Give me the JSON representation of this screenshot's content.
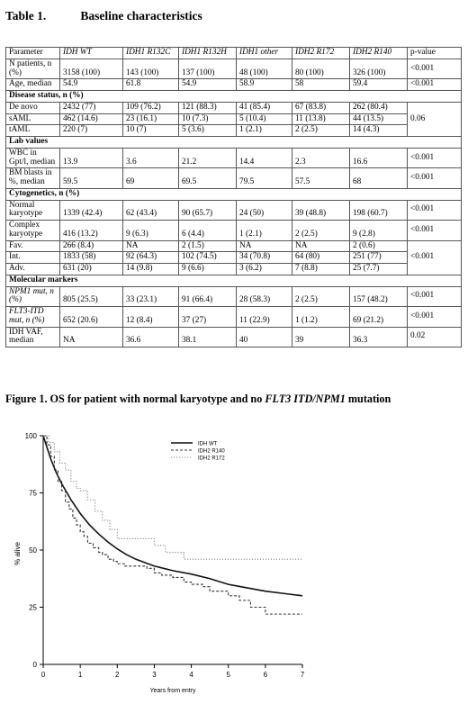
{
  "table": {
    "number": "Table 1.",
    "title": "Baseline characteristics",
    "headers": [
      "Parameter",
      "IDH WT",
      "IDH1 R132C",
      "IDH1 R132H",
      "IDH1 other",
      "IDH2 R172",
      "IDH2 R140",
      "p-value"
    ],
    "rows": [
      {
        "type": "data",
        "label": "N patients, n (%)",
        "values": [
          "3158 (100)",
          "143 (100)",
          "137 (100)",
          "48 (100)",
          "80 (100)",
          "326 (100)"
        ],
        "p": "<0.001"
      },
      {
        "type": "data",
        "label": "Age, median",
        "values": [
          "54.9",
          "61.8",
          "54.9",
          "58.9",
          "58",
          "59.4"
        ],
        "p": "<0.001"
      },
      {
        "type": "section",
        "label": "Disease status, n (%)"
      },
      {
        "type": "data",
        "label": "De novo",
        "values": [
          "2432 (77)",
          "109 (76.2)",
          "121 (88.3)",
          "41 (85.4)",
          "67 (83.8)",
          "262 (80.4)"
        ],
        "p": "0.06",
        "p_rowspan": 3
      },
      {
        "type": "data",
        "label": "sAML",
        "values": [
          "462 (14.6)",
          "23 (16.1)",
          "10 (7.3)",
          "5 (10.4)",
          "11 (13.8)",
          "44 (13.5)"
        ]
      },
      {
        "type": "data",
        "label": "tAML",
        "values": [
          "220 (7)",
          "10 (7)",
          "5 (3.6)",
          "1 (2.1)",
          "2 (2.5)",
          "14 (4.3)"
        ]
      },
      {
        "type": "section",
        "label": "Lab values"
      },
      {
        "type": "data",
        "label": "WBC in Gpt/l, median",
        "values": [
          "13.9",
          "3.6",
          "21.2",
          "14.4",
          "2.3",
          "16.6"
        ],
        "p": "<0.001"
      },
      {
        "type": "data",
        "label": "BM blasts in %, median",
        "values": [
          "59.5",
          "69",
          "69.5",
          "79.5",
          "57.5",
          "68"
        ],
        "p": "<0.001"
      },
      {
        "type": "section",
        "label": "Cytogenetics, n (%)"
      },
      {
        "type": "data",
        "label": "Normal karyotype",
        "values": [
          "1339 (42.4)",
          "62 (43.4)",
          "90 (65.7)",
          "24 (50)",
          "39 (48.8)",
          "198 (60.7)"
        ],
        "p": "<0.001"
      },
      {
        "type": "data",
        "label": "Complex karyotype",
        "values": [
          "416 (13.2)",
          "9 (6.3)",
          "6 (4.4)",
          "1 (2.1)",
          "2 (2.5)",
          "9 (2.8)"
        ],
        "p": "<0.001"
      },
      {
        "type": "data",
        "label": "Fav.",
        "values": [
          "266 (8.4)",
          "NA",
          "2 (1.5)",
          "NA",
          "NA",
          "2 (0.6)"
        ],
        "p": "<0.001",
        "p_rowspan": 3
      },
      {
        "type": "data",
        "label": "Int.",
        "values": [
          "1833 (58)",
          "92 (64.3)",
          "102 (74.5)",
          "34 (70.8)",
          "64 (80)",
          "251 (77)"
        ]
      },
      {
        "type": "data",
        "label": "Adv.",
        "values": [
          "631 (20)",
          "14 (9.8)",
          "9 (6.6)",
          "3 (6.2)",
          "7 (8.8)",
          "25 (7.7)"
        ]
      },
      {
        "type": "section",
        "label": "Molecular markers"
      },
      {
        "type": "data",
        "label": "NPM1 mut, n (%)",
        "values": [
          "805 (25.5)",
          "33 (23.1)",
          "91 (66.4)",
          "28 (58.3)",
          "2 (2.5)",
          "157 (48.2)"
        ],
        "p": "<0.001"
      },
      {
        "type": "data",
        "label": "FLT3-ITD mut, n (%)",
        "values": [
          "652 (20.6)",
          "12 (8.4)",
          "37 (27)",
          "11 (22.9)",
          "1 (1.2)",
          "69 (21.2)"
        ],
        "p": "<0.001"
      },
      {
        "type": "data",
        "label": "IDH VAF, median",
        "values": [
          "NA",
          "36.6",
          "38.1",
          "40",
          "39",
          "36.3"
        ],
        "p": "0.02"
      }
    ]
  },
  "figure": {
    "number": "Figure 1.",
    "title_plain": "OS for patient with normal karyotype and no ",
    "title_italic": "FLT3 ITD/NPM1",
    "title_end": " mutation"
  },
  "chart_data": {
    "type": "line",
    "xlabel": "Years from entry",
    "ylabel": "% alive",
    "xlim": [
      0,
      7
    ],
    "ylim": [
      0,
      100
    ],
    "xticks": [
      0,
      1,
      2,
      3,
      4,
      5,
      6,
      7
    ],
    "yticks": [
      0,
      25,
      50,
      75,
      100
    ],
    "legend_position": "top-right",
    "series": [
      {
        "name": "IDH WT",
        "style": "solid",
        "color": "#111111",
        "points": [
          [
            0,
            100
          ],
          [
            0.1,
            95
          ],
          [
            0.2,
            90
          ],
          [
            0.35,
            84
          ],
          [
            0.5,
            79
          ],
          [
            0.75,
            72
          ],
          [
            1,
            66
          ],
          [
            1.25,
            61
          ],
          [
            1.5,
            57
          ],
          [
            1.75,
            53.5
          ],
          [
            2,
            50.5
          ],
          [
            2.25,
            48
          ],
          [
            2.5,
            46
          ],
          [
            2.75,
            44.5
          ],
          [
            3,
            43
          ],
          [
            3.25,
            42
          ],
          [
            3.5,
            41
          ],
          [
            4,
            39.5
          ],
          [
            4.5,
            37.5
          ],
          [
            5,
            35
          ],
          [
            5.5,
            33.5
          ],
          [
            6,
            32
          ],
          [
            6.5,
            31
          ],
          [
            7,
            30
          ]
        ]
      },
      {
        "name": "IDH2 R140",
        "style": "dashed",
        "color": "#333333",
        "points": [
          [
            0,
            100
          ],
          [
            0.1,
            96
          ],
          [
            0.2,
            91
          ],
          [
            0.3,
            85
          ],
          [
            0.4,
            80
          ],
          [
            0.5,
            76
          ],
          [
            0.6,
            71
          ],
          [
            0.7,
            68
          ],
          [
            0.8,
            64
          ],
          [
            0.9,
            61
          ],
          [
            1,
            58
          ],
          [
            1.1,
            56
          ],
          [
            1.2,
            53
          ],
          [
            1.35,
            51
          ],
          [
            1.5,
            49
          ],
          [
            1.6,
            48
          ],
          [
            1.75,
            46
          ],
          [
            1.9,
            45
          ],
          [
            2,
            44
          ],
          [
            2.2,
            43
          ],
          [
            2.5,
            43
          ],
          [
            2.8,
            42
          ],
          [
            3,
            40
          ],
          [
            3.2,
            39
          ],
          [
            3.5,
            38
          ],
          [
            3.8,
            36
          ],
          [
            4,
            35
          ],
          [
            4.3,
            34
          ],
          [
            4.5,
            32
          ],
          [
            5,
            30
          ],
          [
            5.3,
            28
          ],
          [
            5.6,
            25
          ],
          [
            6,
            22
          ],
          [
            7,
            22
          ]
        ]
      },
      {
        "name": "IDH2 R172",
        "style": "dotted",
        "color": "#888888",
        "points": [
          [
            0,
            100
          ],
          [
            0.15,
            97
          ],
          [
            0.3,
            93
          ],
          [
            0.45,
            88
          ],
          [
            0.6,
            85
          ],
          [
            0.75,
            80
          ],
          [
            0.9,
            77
          ],
          [
            1,
            76
          ],
          [
            1.2,
            72
          ],
          [
            1.4,
            67
          ],
          [
            1.6,
            63
          ],
          [
            1.8,
            59
          ],
          [
            2,
            55
          ],
          [
            2.3,
            55
          ],
          [
            2.6,
            55
          ],
          [
            3,
            52
          ],
          [
            3.3,
            49
          ],
          [
            3.6,
            49
          ],
          [
            3.8,
            46
          ],
          [
            4,
            46
          ],
          [
            5,
            46
          ],
          [
            6,
            46
          ],
          [
            7,
            46
          ]
        ]
      }
    ]
  }
}
